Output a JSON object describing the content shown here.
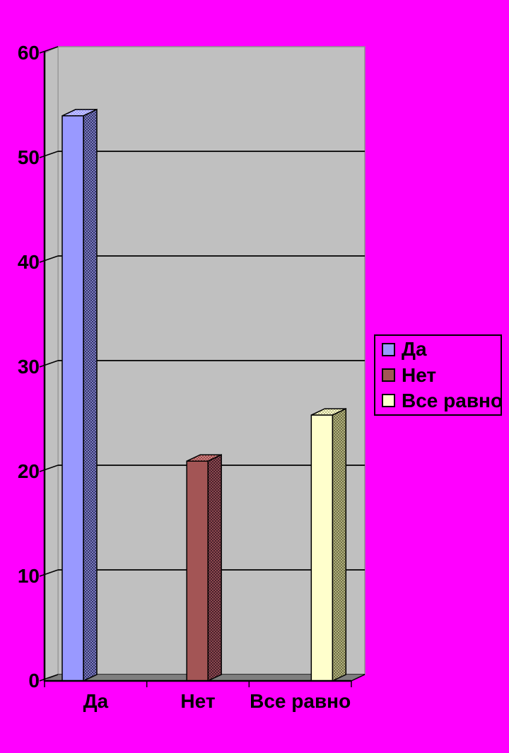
{
  "background_color": "#FF00FF",
  "chart_data": {
    "type": "bar",
    "variant": "3d-column",
    "title": "",
    "xlabel": "",
    "ylabel": "",
    "categories": [
      "Да",
      "Нет",
      "Все равно"
    ],
    "values": [
      54,
      21,
      25.4
    ],
    "ylim": [
      0,
      60
    ],
    "yticks": [
      0,
      10,
      20,
      30,
      40,
      50,
      60
    ],
    "grid": true,
    "legend_position": "right",
    "wall_color": "#C0C0C0",
    "floor_color": "#7F7F7F",
    "gridline_color": "#000000",
    "axis_color": "#000000",
    "text_color": "#000000",
    "series_styles": [
      {
        "label": "Да",
        "front": "#9999FF",
        "side": [
          "#35356B",
          "#7C7CC0"
        ],
        "top": [
          "#9D9DFF",
          "#C6C6FF"
        ]
      },
      {
        "label": "Нет",
        "front": "#A35555",
        "side": [
          "#46202B",
          "#8F4A50"
        ],
        "top": [
          "#C98585",
          "#9F4848"
        ]
      },
      {
        "label": "Все равно",
        "front": "#FFFFCC",
        "side": [
          "#6F6F45",
          "#B2B27F"
        ],
        "top": [
          "#FFFFCC",
          "#BFBF8F"
        ]
      }
    ]
  },
  "legend": {
    "items": [
      {
        "label": "Да",
        "color": "#9999FF"
      },
      {
        "label": "Нет",
        "color": "#A35555"
      },
      {
        "label": "Все равно",
        "color": "#FFFFCC"
      }
    ]
  }
}
